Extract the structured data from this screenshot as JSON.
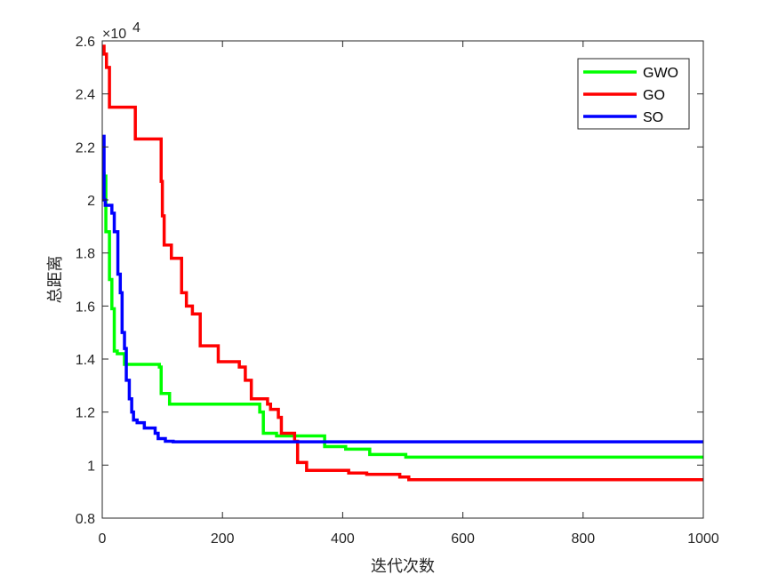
{
  "chart_data": {
    "type": "line",
    "title": "",
    "xlabel": "迭代次数",
    "ylabel": "总距离",
    "y_multiplier_base": "×10",
    "y_multiplier_exp": "4",
    "xlim": [
      0,
      1000
    ],
    "ylim": [
      0.8,
      2.6
    ],
    "xticks": [
      0,
      200,
      400,
      600,
      800,
      1000
    ],
    "xtick_labels": [
      "0",
      "200",
      "400",
      "600",
      "800",
      "1000"
    ],
    "yticks": [
      0.8,
      1.0,
      1.2,
      1.4,
      1.6,
      1.8,
      2.0,
      2.2,
      2.4,
      2.6
    ],
    "ytick_labels": [
      "0.8",
      "1",
      "1.2",
      "1.4",
      "1.6",
      "1.8",
      "2",
      "2.2",
      "2.4",
      "2.6"
    ],
    "grid": false,
    "legend_position": "top-right",
    "series": [
      {
        "name": "GWO",
        "color": "#00ff00",
        "points": [
          [
            0,
            2.1
          ],
          [
            3,
            2.1
          ],
          [
            3,
            2.09
          ],
          [
            6,
            2.09
          ],
          [
            6,
            1.88
          ],
          [
            12,
            1.88
          ],
          [
            12,
            1.7
          ],
          [
            16,
            1.7
          ],
          [
            16,
            1.59
          ],
          [
            20,
            1.59
          ],
          [
            20,
            1.43
          ],
          [
            25,
            1.43
          ],
          [
            25,
            1.42
          ],
          [
            37,
            1.42
          ],
          [
            37,
            1.38
          ],
          [
            95,
            1.38
          ],
          [
            95,
            1.37
          ],
          [
            98,
            1.37
          ],
          [
            98,
            1.27
          ],
          [
            112,
            1.27
          ],
          [
            112,
            1.23
          ],
          [
            262,
            1.23
          ],
          [
            262,
            1.2
          ],
          [
            268,
            1.2
          ],
          [
            268,
            1.12
          ],
          [
            290,
            1.12
          ],
          [
            290,
            1.11
          ],
          [
            370,
            1.11
          ],
          [
            370,
            1.07
          ],
          [
            405,
            1.07
          ],
          [
            405,
            1.06
          ],
          [
            445,
            1.06
          ],
          [
            445,
            1.04
          ],
          [
            505,
            1.04
          ],
          [
            505,
            1.03
          ],
          [
            1000,
            1.03
          ]
        ]
      },
      {
        "name": "GO",
        "color": "#ff0000",
        "points": [
          [
            0,
            2.58
          ],
          [
            3,
            2.58
          ],
          [
            3,
            2.55
          ],
          [
            7,
            2.55
          ],
          [
            7,
            2.5
          ],
          [
            12,
            2.5
          ],
          [
            12,
            2.35
          ],
          [
            55,
            2.35
          ],
          [
            55,
            2.23
          ],
          [
            98,
            2.23
          ],
          [
            98,
            2.07
          ],
          [
            100,
            2.07
          ],
          [
            100,
            1.94
          ],
          [
            103,
            1.94
          ],
          [
            103,
            1.83
          ],
          [
            115,
            1.83
          ],
          [
            115,
            1.78
          ],
          [
            132,
            1.78
          ],
          [
            132,
            1.65
          ],
          [
            140,
            1.65
          ],
          [
            140,
            1.6
          ],
          [
            150,
            1.6
          ],
          [
            150,
            1.57
          ],
          [
            163,
            1.57
          ],
          [
            163,
            1.45
          ],
          [
            193,
            1.45
          ],
          [
            193,
            1.39
          ],
          [
            200,
            1.39
          ],
          [
            200,
            1.39
          ],
          [
            228,
            1.39
          ],
          [
            228,
            1.37
          ],
          [
            238,
            1.37
          ],
          [
            238,
            1.32
          ],
          [
            248,
            1.32
          ],
          [
            248,
            1.25
          ],
          [
            275,
            1.25
          ],
          [
            275,
            1.23
          ],
          [
            280,
            1.23
          ],
          [
            280,
            1.21
          ],
          [
            293,
            1.21
          ],
          [
            293,
            1.18
          ],
          [
            298,
            1.18
          ],
          [
            298,
            1.12
          ],
          [
            320,
            1.12
          ],
          [
            320,
            1.09
          ],
          [
            325,
            1.09
          ],
          [
            325,
            1.01
          ],
          [
            340,
            1.01
          ],
          [
            340,
            0.98
          ],
          [
            410,
            0.98
          ],
          [
            410,
            0.97
          ],
          [
            440,
            0.97
          ],
          [
            440,
            0.965
          ],
          [
            495,
            0.965
          ],
          [
            495,
            0.955
          ],
          [
            510,
            0.955
          ],
          [
            510,
            0.945
          ],
          [
            1000,
            0.945
          ]
        ]
      },
      {
        "name": "SO",
        "color": "#0000ff",
        "points": [
          [
            0,
            2.24
          ],
          [
            3,
            2.24
          ],
          [
            3,
            2.0
          ],
          [
            5,
            2.0
          ],
          [
            5,
            1.98
          ],
          [
            16,
            1.98
          ],
          [
            16,
            1.95
          ],
          [
            20,
            1.95
          ],
          [
            20,
            1.88
          ],
          [
            26,
            1.88
          ],
          [
            26,
            1.72
          ],
          [
            30,
            1.72
          ],
          [
            30,
            1.65
          ],
          [
            33,
            1.65
          ],
          [
            33,
            1.5
          ],
          [
            37,
            1.5
          ],
          [
            37,
            1.44
          ],
          [
            40,
            1.44
          ],
          [
            40,
            1.32
          ],
          [
            45,
            1.32
          ],
          [
            45,
            1.25
          ],
          [
            49,
            1.25
          ],
          [
            49,
            1.2
          ],
          [
            52,
            1.2
          ],
          [
            52,
            1.17
          ],
          [
            58,
            1.17
          ],
          [
            58,
            1.16
          ],
          [
            70,
            1.16
          ],
          [
            70,
            1.14
          ],
          [
            88,
            1.14
          ],
          [
            88,
            1.12
          ],
          [
            93,
            1.12
          ],
          [
            93,
            1.1
          ],
          [
            105,
            1.1
          ],
          [
            105,
            1.09
          ],
          [
            118,
            1.09
          ],
          [
            118,
            1.088
          ],
          [
            1000,
            1.088
          ]
        ]
      }
    ]
  }
}
